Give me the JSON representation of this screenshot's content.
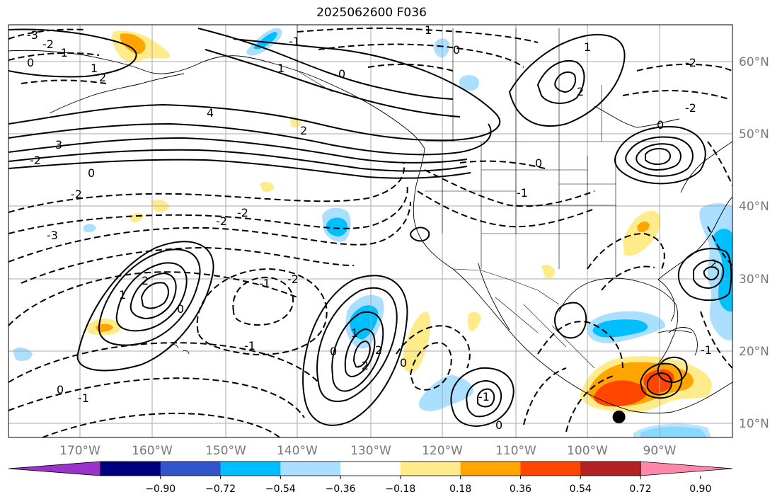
{
  "title": "2025062600 F036",
  "map": {
    "lat_labels": [
      "60°N",
      "50°N",
      "40°N",
      "30°N",
      "20°N",
      "10°N"
    ],
    "lon_labels": [
      "170°W",
      "160°W",
      "150°W",
      "140°W",
      "130°W",
      "120°W",
      "110°W",
      "100°W",
      "90°W"
    ],
    "marker": {
      "lon": -95.9,
      "lat": 10.9,
      "color": "#000000"
    },
    "contour_color": "#000000"
  },
  "colorbar": {
    "colors": [
      "#9933cc",
      "#000080",
      "#3355cc",
      "#00bfff",
      "#aadfff",
      "#ffffff",
      "#ffeb8a",
      "#ffa500",
      "#ff4500",
      "#b22222",
      "#ff88aa"
    ],
    "tick_labels": [
      "−0.90",
      "−0.72",
      "−0.54",
      "−0.36",
      "−0.18",
      "0.18",
      "0.36",
      "0.54",
      "0.72",
      "0.90"
    ]
  },
  "contour_labels": [
    {
      "text": "-3"
    },
    {
      "text": "-2"
    },
    {
      "text": "-1"
    },
    {
      "text": "0"
    },
    {
      "text": "1"
    },
    {
      "text": "2"
    },
    {
      "text": "3"
    },
    {
      "text": "4"
    },
    {
      "text": "-2"
    },
    {
      "text": "-2"
    },
    {
      "text": "-3"
    },
    {
      "text": "-2"
    },
    {
      "text": "-2"
    },
    {
      "text": "2"
    },
    {
      "text": "1"
    },
    {
      "text": "0"
    },
    {
      "text": "-1"
    },
    {
      "text": "0"
    },
    {
      "text": "-1"
    },
    {
      "text": "0"
    },
    {
      "text": "2"
    },
    {
      "text": "1"
    },
    {
      "text": "0"
    },
    {
      "text": "-1"
    },
    {
      "text": "1"
    },
    {
      "text": "0"
    },
    {
      "text": "2"
    },
    {
      "text": "-2"
    },
    {
      "text": "1"
    },
    {
      "text": "0"
    },
    {
      "text": "-1"
    },
    {
      "text": "-2"
    },
    {
      "text": "0"
    },
    {
      "text": "2"
    },
    {
      "text": "-1"
    },
    {
      "text": "0"
    },
    {
      "text": "1"
    },
    {
      "text": "0"
    },
    {
      "text": "-2"
    },
    {
      "text": "-2"
    },
    {
      "text": "-1"
    },
    {
      "text": "2"
    },
    {
      "text": "0"
    },
    {
      "text": "-1"
    }
  ]
}
